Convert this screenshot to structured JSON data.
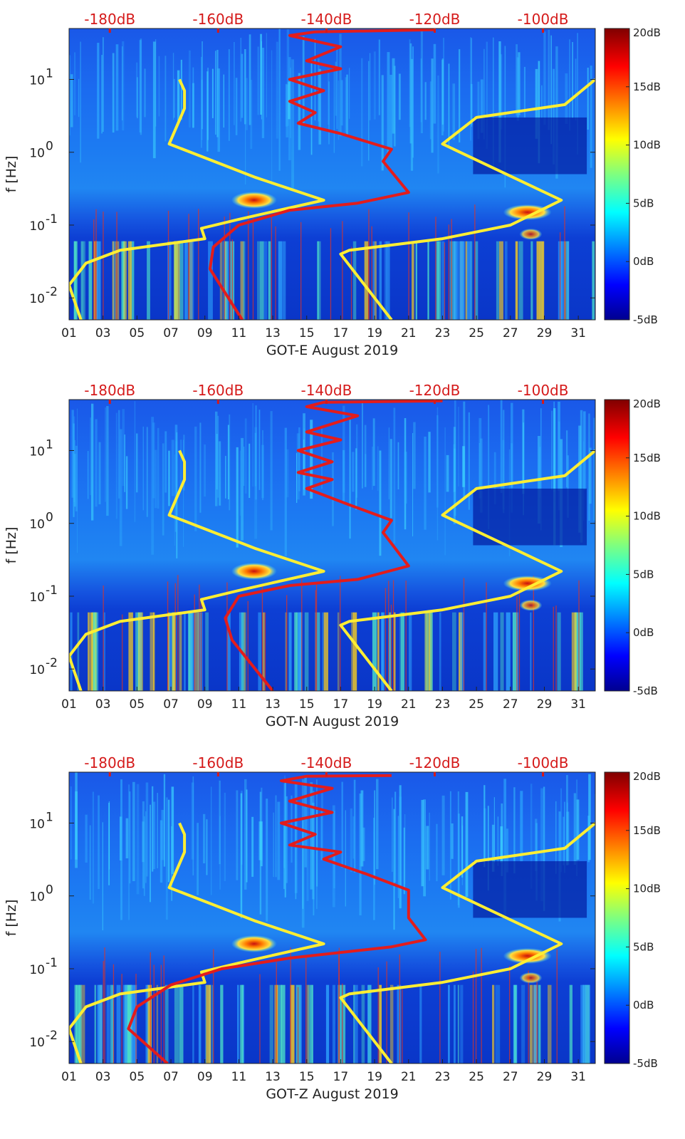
{
  "chart_data": [
    {
      "type": "heatmap",
      "xlabel": "GOT-E August 2019",
      "ylabel": "f [Hz]",
      "x_ticks": [
        "01",
        "03",
        "05",
        "07",
        "09",
        "11",
        "13",
        "15",
        "17",
        "19",
        "21",
        "23",
        "25",
        "27",
        "29",
        "31"
      ],
      "y_scale": "log",
      "y_ticks": [
        {
          "label": "10^-2",
          "value": 0.01
        },
        {
          "label": "10^-1",
          "value": 0.1
        },
        {
          "label": "10^0",
          "value": 1
        },
        {
          "label": "10^1",
          "value": 10
        }
      ],
      "ylim": [
        0.005,
        50
      ],
      "xlim": [
        1,
        32
      ],
      "colorbar": {
        "labels": [
          "20dB",
          "15dB",
          "10dB",
          "5dB",
          "0dB",
          "-5dB"
        ],
        "range": [
          -5,
          20
        ]
      },
      "top_axis": {
        "labels": [
          "-180dB",
          "-160dB",
          "-140dB",
          "-120dB",
          "-100dB"
        ],
        "color": "#d51a1a"
      },
      "series": [
        {
          "color": "#ffee33",
          "points": [
            [
              7.5,
              10
            ],
            [
              7.8,
              7
            ],
            [
              7.8,
              4
            ],
            [
              6.9,
              1.3
            ],
            [
              12,
              0.45
            ],
            [
              16,
              0.22
            ],
            [
              11,
              0.12
            ],
            [
              8.8,
              0.09
            ],
            [
              9,
              0.065
            ],
            [
              4,
              0.045
            ],
            [
              2,
              0.03
            ],
            [
              1,
              0.015
            ],
            [
              1.7,
              0.005
            ]
          ]
        },
        {
          "color": "#ffee33",
          "points": [
            [
              32,
              10
            ],
            [
              30.2,
              4.5
            ],
            [
              25,
              3
            ],
            [
              23,
              1.3
            ],
            [
              30,
              0.22
            ],
            [
              27,
              0.1
            ],
            [
              23,
              0.065
            ],
            [
              17.5,
              0.045
            ],
            [
              17,
              0.04
            ],
            [
              20,
              0.005
            ]
          ]
        },
        {
          "color": "#e31c1c",
          "points": [
            [
              22.5,
              48
            ],
            [
              15.5,
              45
            ],
            [
              14,
              40
            ],
            [
              17,
              28
            ],
            [
              15,
              18
            ],
            [
              17,
              14
            ],
            [
              14,
              10
            ],
            [
              16,
              7
            ],
            [
              14,
              5
            ],
            [
              15.5,
              3.5
            ],
            [
              14.5,
              2.5
            ],
            [
              17,
              1.8
            ],
            [
              20,
              1.1
            ],
            [
              19.5,
              0.75
            ],
            [
              21,
              0.28
            ],
            [
              18,
              0.2
            ],
            [
              14,
              0.16
            ],
            [
              11,
              0.1
            ],
            [
              9.5,
              0.05
            ],
            [
              9.3,
              0.025
            ],
            [
              11.2,
              0.005
            ]
          ]
        }
      ]
    },
    {
      "type": "heatmap",
      "xlabel": "GOT-N August 2019",
      "ylabel": "f [Hz]",
      "x_ticks": [
        "01",
        "03",
        "05",
        "07",
        "09",
        "11",
        "13",
        "15",
        "17",
        "19",
        "21",
        "23",
        "25",
        "27",
        "29",
        "31"
      ],
      "y_scale": "log",
      "y_ticks": [
        {
          "label": "10^-2",
          "value": 0.01
        },
        {
          "label": "10^-1",
          "value": 0.1
        },
        {
          "label": "10^0",
          "value": 1
        },
        {
          "label": "10^1",
          "value": 10
        }
      ],
      "ylim": [
        0.005,
        50
      ],
      "xlim": [
        1,
        32
      ],
      "colorbar": {
        "labels": [
          "20dB",
          "15dB",
          "10dB",
          "5dB",
          "0dB",
          "-5dB"
        ],
        "range": [
          -5,
          20
        ]
      },
      "top_axis": {
        "labels": [
          "-180dB",
          "-160dB",
          "-140dB",
          "-120dB",
          "-100dB"
        ],
        "color": "#d51a1a"
      },
      "series": [
        {
          "color": "#ffee33",
          "points": [
            [
              7.5,
              10
            ],
            [
              7.8,
              7
            ],
            [
              7.8,
              4
            ],
            [
              6.9,
              1.3
            ],
            [
              12,
              0.45
            ],
            [
              16,
              0.22
            ],
            [
              11,
              0.12
            ],
            [
              8.8,
              0.09
            ],
            [
              9,
              0.065
            ],
            [
              4,
              0.045
            ],
            [
              2,
              0.03
            ],
            [
              1,
              0.015
            ],
            [
              1.7,
              0.005
            ]
          ]
        },
        {
          "color": "#ffee33",
          "points": [
            [
              32,
              10
            ],
            [
              30.2,
              4.5
            ],
            [
              25,
              3
            ],
            [
              23,
              1.3
            ],
            [
              30,
              0.22
            ],
            [
              27,
              0.1
            ],
            [
              23,
              0.065
            ],
            [
              17.5,
              0.045
            ],
            [
              17,
              0.04
            ],
            [
              20,
              0.005
            ]
          ]
        },
        {
          "color": "#e31c1c",
          "points": [
            [
              23,
              48
            ],
            [
              16,
              46
            ],
            [
              15,
              40
            ],
            [
              18,
              30
            ],
            [
              15,
              18
            ],
            [
              17,
              14
            ],
            [
              14.5,
              10
            ],
            [
              16.5,
              7
            ],
            [
              14.5,
              5
            ],
            [
              16.5,
              4
            ],
            [
              15,
              3
            ],
            [
              17.5,
              1.8
            ],
            [
              20,
              1.1
            ],
            [
              19.5,
              0.75
            ],
            [
              21,
              0.26
            ],
            [
              18,
              0.17
            ],
            [
              14,
              0.14
            ],
            [
              11,
              0.1
            ],
            [
              10.2,
              0.05
            ],
            [
              10.6,
              0.025
            ],
            [
              13,
              0.005
            ]
          ]
        }
      ]
    },
    {
      "type": "heatmap",
      "xlabel": "GOT-Z August 2019",
      "ylabel": "f [Hz]",
      "x_ticks": [
        "01",
        "03",
        "05",
        "07",
        "09",
        "11",
        "13",
        "15",
        "17",
        "19",
        "21",
        "23",
        "25",
        "27",
        "29",
        "31"
      ],
      "y_scale": "log",
      "y_ticks": [
        {
          "label": "10^-2",
          "value": 0.01
        },
        {
          "label": "10^-1",
          "value": 0.1
        },
        {
          "label": "10^0",
          "value": 1
        },
        {
          "label": "10^1",
          "value": 10
        }
      ],
      "ylim": [
        0.005,
        50
      ],
      "xlim": [
        1,
        32
      ],
      "colorbar": {
        "labels": [
          "20dB",
          "15dB",
          "10dB",
          "5dB",
          "0dB",
          "-5dB"
        ],
        "range": [
          -5,
          20
        ]
      },
      "top_axis": {
        "labels": [
          "-180dB",
          "-160dB",
          "-140dB",
          "-120dB",
          "-100dB"
        ],
        "color": "#d51a1a"
      },
      "series": [
        {
          "color": "#ffee33",
          "points": [
            [
              7.5,
              10
            ],
            [
              7.8,
              7
            ],
            [
              7.8,
              4
            ],
            [
              6.9,
              1.3
            ],
            [
              12,
              0.45
            ],
            [
              16,
              0.22
            ],
            [
              11,
              0.12
            ],
            [
              8.8,
              0.09
            ],
            [
              9,
              0.065
            ],
            [
              4,
              0.045
            ],
            [
              2,
              0.03
            ],
            [
              1,
              0.015
            ],
            [
              1.7,
              0.005
            ]
          ]
        },
        {
          "color": "#ffee33",
          "points": [
            [
              32,
              10
            ],
            [
              30.2,
              4.5
            ],
            [
              25,
              3
            ],
            [
              23,
              1.3
            ],
            [
              30,
              0.22
            ],
            [
              27,
              0.1
            ],
            [
              23,
              0.065
            ],
            [
              17.5,
              0.045
            ],
            [
              17,
              0.04
            ],
            [
              20,
              0.005
            ]
          ]
        },
        {
          "color": "#e31c1c",
          "points": [
            [
              20,
              45
            ],
            [
              15,
              44
            ],
            [
              13.5,
              38
            ],
            [
              16.5,
              30
            ],
            [
              14,
              20
            ],
            [
              16.5,
              14
            ],
            [
              13.5,
              10
            ],
            [
              15.5,
              7
            ],
            [
              14,
              5
            ],
            [
              17,
              4
            ],
            [
              16,
              3.2
            ],
            [
              18.5,
              2
            ],
            [
              21,
              1.2
            ],
            [
              21,
              0.5
            ],
            [
              22,
              0.25
            ],
            [
              20,
              0.2
            ],
            [
              14,
              0.14
            ],
            [
              10,
              0.1
            ],
            [
              7,
              0.06
            ],
            [
              5,
              0.03
            ],
            [
              4.5,
              0.015
            ],
            [
              6.8,
              0.005
            ]
          ]
        }
      ]
    }
  ]
}
